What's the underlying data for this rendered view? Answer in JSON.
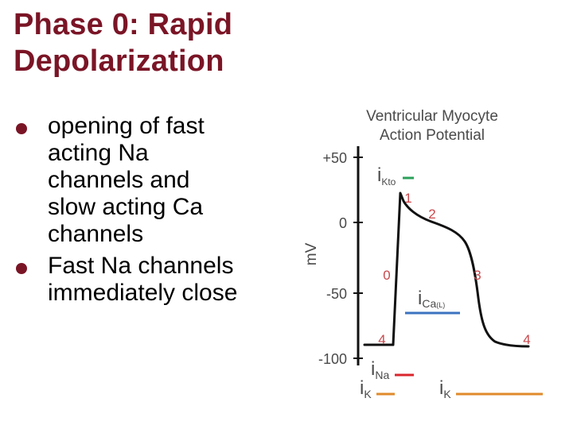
{
  "slide": {
    "title_lines": [
      "Phase 0: Rapid",
      "Depolarization"
    ],
    "bullets": [
      {
        "lines": [
          {
            "text": "opening of fast",
            "style": "hl"
          },
          {
            "text": "acting Na",
            "style": "hl"
          },
          {
            "text": "channels and",
            "style": "hl"
          },
          {
            "text": "slow acting Ca",
            "style": "hl"
          },
          {
            "text": "channels",
            "style": "hl"
          }
        ]
      },
      {
        "lines": [
          {
            "text": "Fast Na channels",
            "style": "nm"
          },
          {
            "text": "immediately close",
            "style": "nm"
          }
        ]
      }
    ]
  },
  "diagram": {
    "title_line1": "Ventricular Myocyte",
    "title_line2": "Action Potential",
    "y_axis_label": "mV",
    "y_ticks": [
      "+50",
      "0",
      "-50",
      "-100"
    ],
    "phase_labels": [
      "0",
      "1",
      "2",
      "3",
      "4",
      "4"
    ],
    "currents": {
      "ikto_main": "i",
      "ikto_sub": "Kto",
      "ical_main": "i",
      "ical_sub": "Ca",
      "ical_subsub": "(L)",
      "ina_main": "i",
      "ina_sub": "Na",
      "ik_left_main": "i",
      "ik_left_sub": "K",
      "ik_right_main": "i",
      "ik_right_sub": "K"
    },
    "colors": {
      "trace": "#111111",
      "phase_labels": "#c9484c",
      "ikto_bar": "#2aa05a",
      "ical_bar": "#3b72c0",
      "ina_bar": "#d9262c",
      "ik_bar": "#e08a2a",
      "axis_text": "#4a4a4a"
    }
  }
}
